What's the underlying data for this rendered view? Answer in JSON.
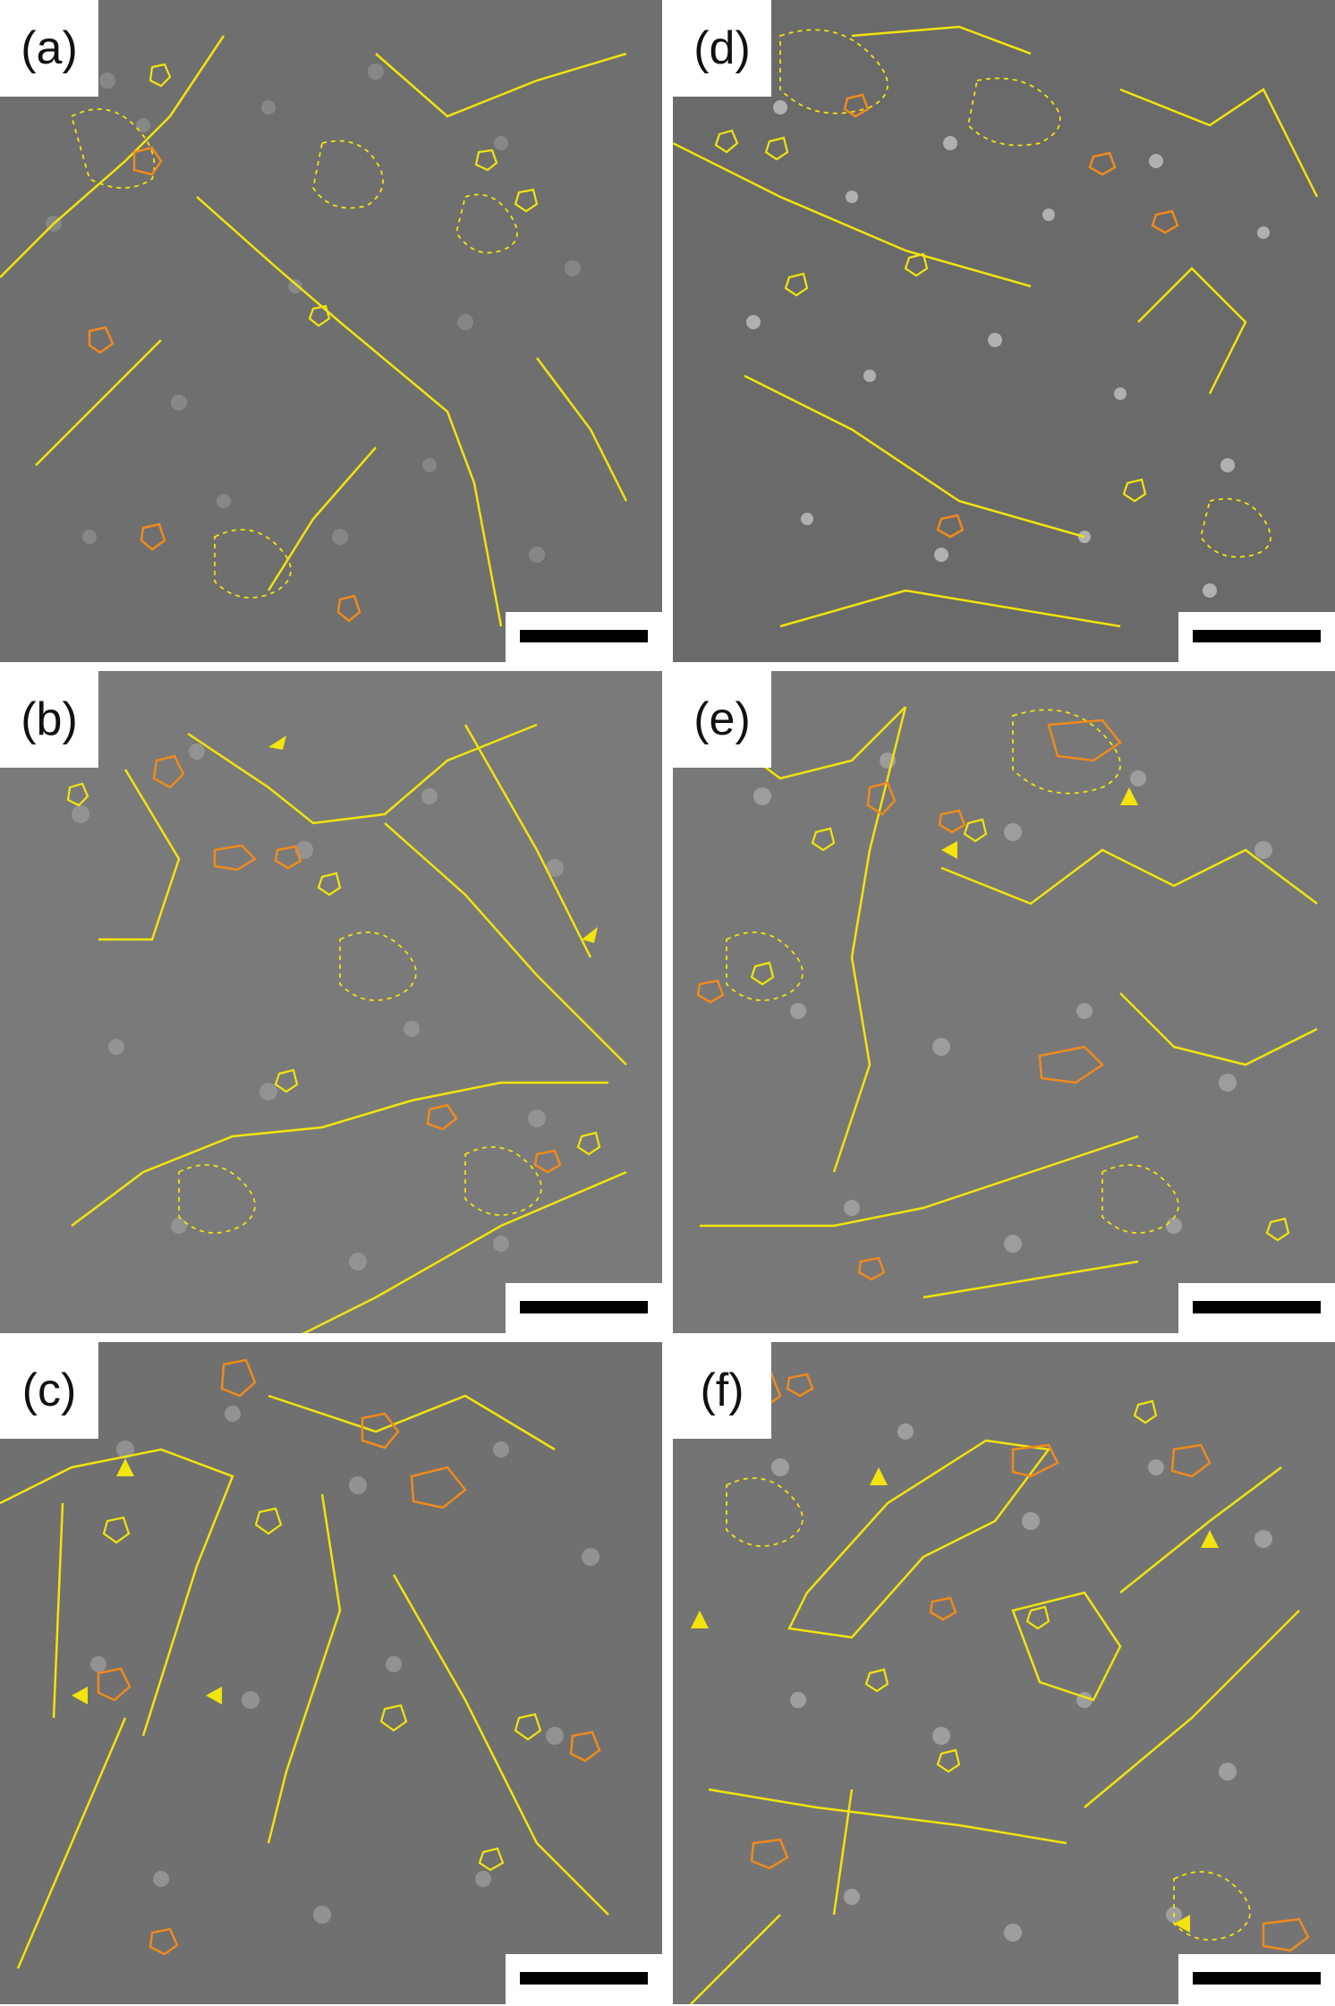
{
  "figure": {
    "panels": [
      {
        "id": "a",
        "label": "(a)",
        "tone": "#6f6f6f",
        "texture": "#9a9a9a"
      },
      {
        "id": "b",
        "label": "(b)",
        "tone": "#7a7a7a",
        "texture": "#a3a3a3"
      },
      {
        "id": "c",
        "label": "(c)",
        "tone": "#707070",
        "texture": "#a8a8a8"
      },
      {
        "id": "d",
        "label": "(d)",
        "tone": "#6a6a6a",
        "texture": "#c8c8c8"
      },
      {
        "id": "e",
        "label": "(e)",
        "tone": "#787878",
        "texture": "#b0b0b0"
      },
      {
        "id": "f",
        "label": "(f)",
        "tone": "#747474",
        "texture": "#b5b5b5"
      }
    ],
    "colors": {
      "annotation_yellow": "#f2e40c",
      "annotation_orange": "#f08a1c",
      "scale_bar": "#000000",
      "label_background": "#ffffff"
    }
  }
}
